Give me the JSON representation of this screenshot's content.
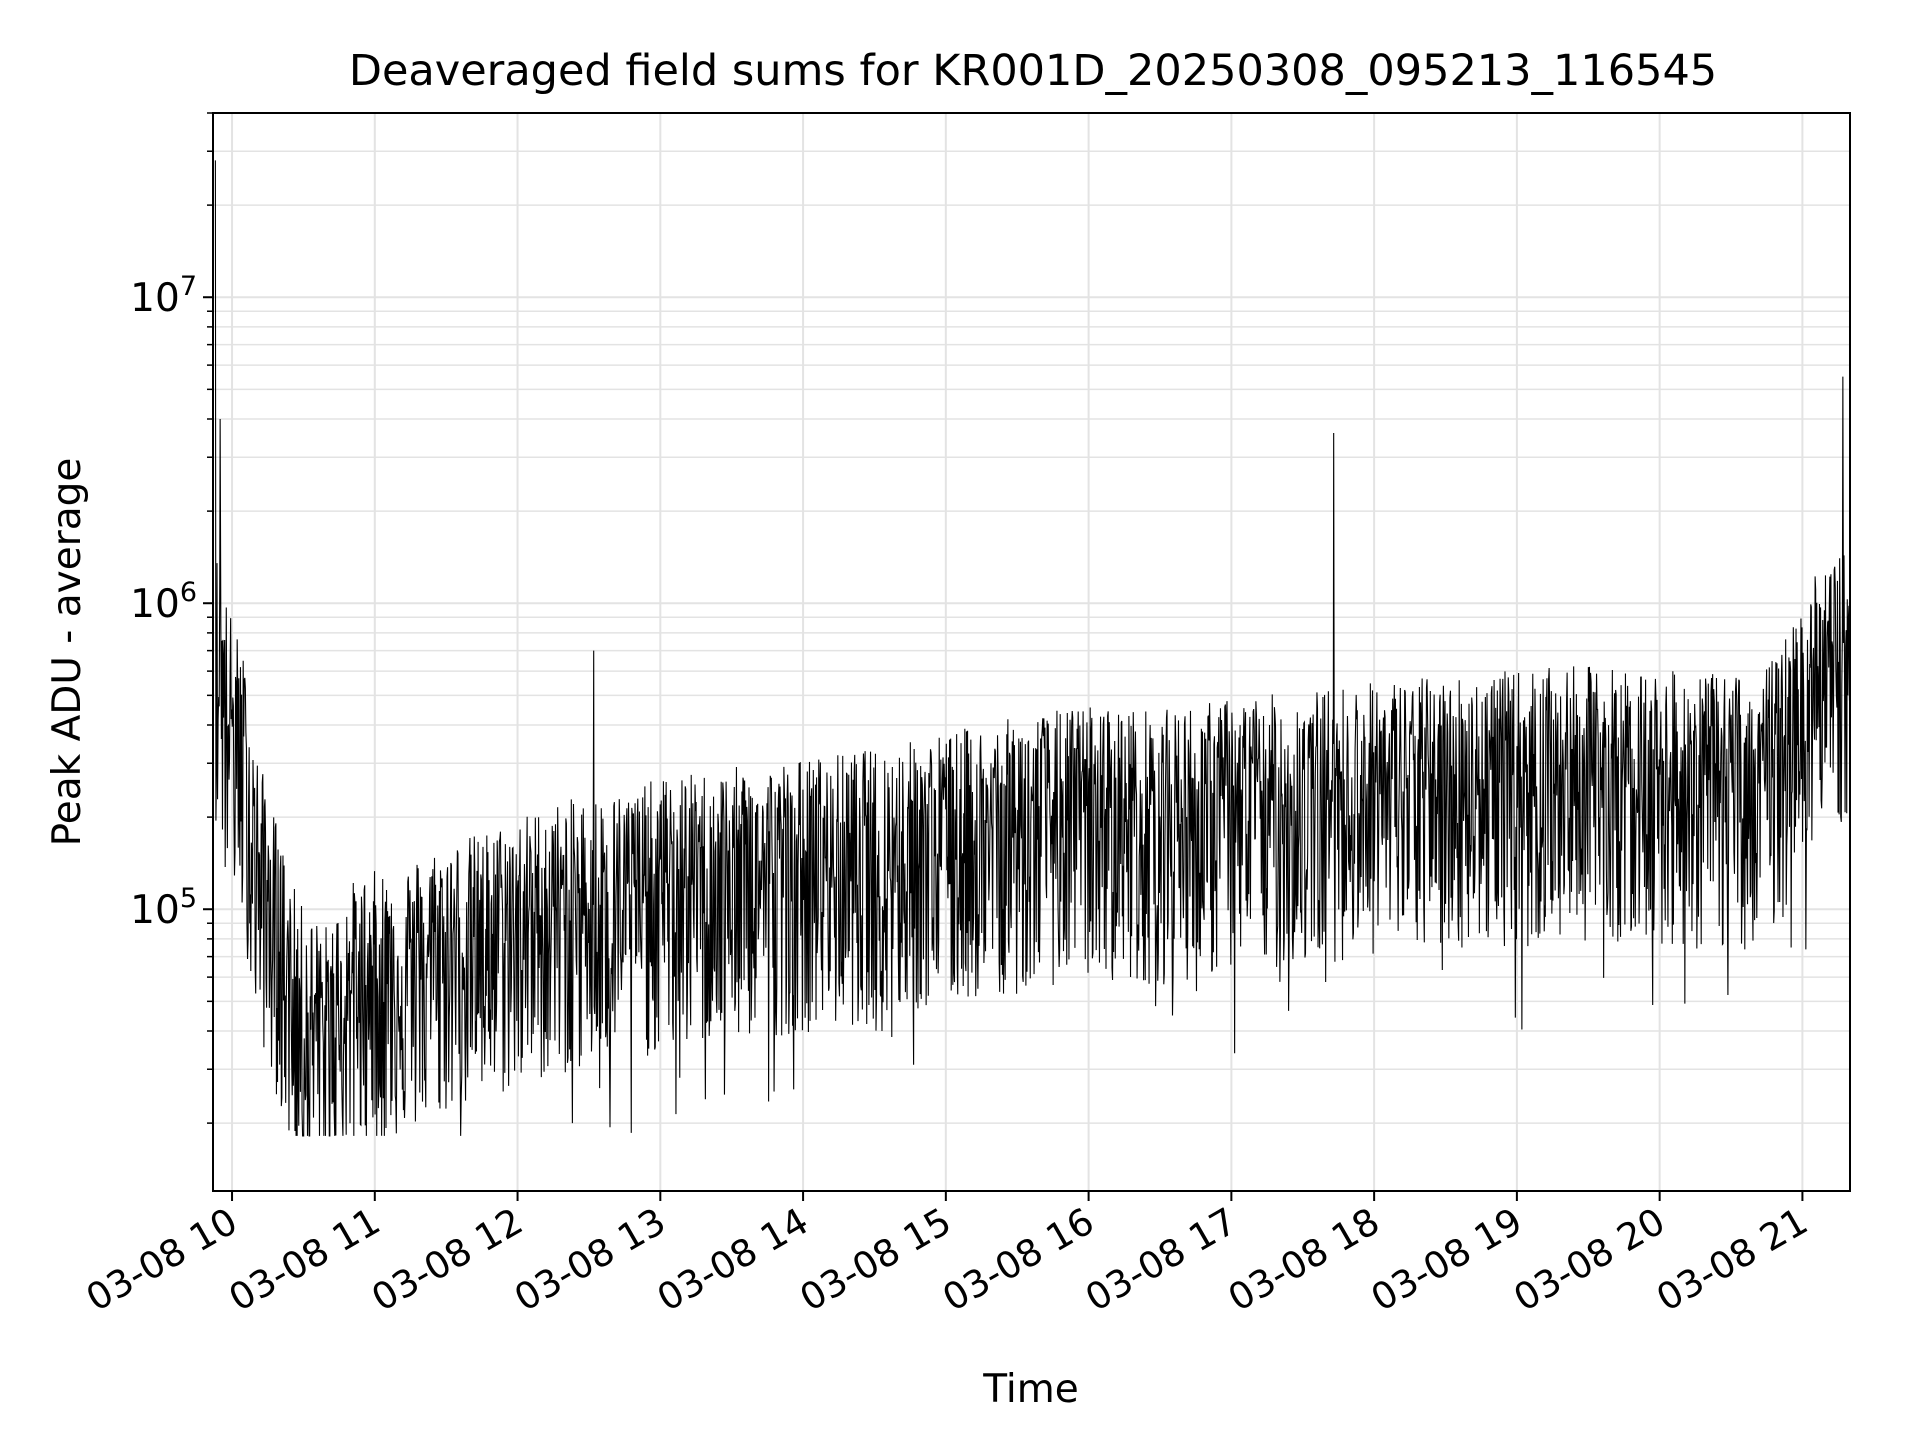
{
  "chart_data": {
    "type": "line",
    "title": "Deaveraged field sums for KR001D_20250308_095213_116545",
    "xlabel": "Time",
    "ylabel": "Peak ADU - average",
    "yscale": "log",
    "ylim": [
      12000,
      40000000
    ],
    "xlim": [
      "2025-03-08 09:52",
      "2025-03-08 21:20"
    ],
    "grid": true,
    "line_color": "#000000",
    "grid_color": "#e3e3e3",
    "x_ticks": [
      {
        "value": "2025-03-08 10:00",
        "label": "03-08 10"
      },
      {
        "value": "2025-03-08 11:00",
        "label": "03-08 11"
      },
      {
        "value": "2025-03-08 12:00",
        "label": "03-08 12"
      },
      {
        "value": "2025-03-08 13:00",
        "label": "03-08 13"
      },
      {
        "value": "2025-03-08 14:00",
        "label": "03-08 14"
      },
      {
        "value": "2025-03-08 15:00",
        "label": "03-08 15"
      },
      {
        "value": "2025-03-08 16:00",
        "label": "03-08 16"
      },
      {
        "value": "2025-03-08 17:00",
        "label": "03-08 17"
      },
      {
        "value": "2025-03-08 18:00",
        "label": "03-08 18"
      },
      {
        "value": "2025-03-08 19:00",
        "label": "03-08 19"
      },
      {
        "value": "2025-03-08 20:00",
        "label": "03-08 20"
      },
      {
        "value": "2025-03-08 21:00",
        "label": "03-08 21"
      }
    ],
    "y_ticks": [
      {
        "value": 100000,
        "base": "10",
        "exp": "5"
      },
      {
        "value": 1000000,
        "base": "10",
        "exp": "6"
      },
      {
        "value": 10000000,
        "base": "10",
        "exp": "7"
      }
    ],
    "series": [
      {
        "x": [
          "2025-03-08 09:53",
          "2025-03-08 09:55",
          "2025-03-08 09:57",
          "2025-03-08 10:00",
          "2025-03-08 10:05",
          "2025-03-08 10:10",
          "2025-03-08 10:15",
          "2025-03-08 10:20",
          "2025-03-08 10:25",
          "2025-03-08 10:30",
          "2025-03-08 10:40",
          "2025-03-08 10:50",
          "2025-03-08 11:00",
          "2025-03-08 11:15",
          "2025-03-08 11:30",
          "2025-03-08 11:45",
          "2025-03-08 12:00",
          "2025-03-08 12:15",
          "2025-03-08 12:30",
          "2025-03-08 12:45",
          "2025-03-08 13:00",
          "2025-03-08 13:30",
          "2025-03-08 14:00",
          "2025-03-08 14:30",
          "2025-03-08 15:00",
          "2025-03-08 15:30",
          "2025-03-08 16:00",
          "2025-03-08 16:30",
          "2025-03-08 17:00",
          "2025-03-08 17:30",
          "2025-03-08 18:00",
          "2025-03-08 18:30",
          "2025-03-08 19:00",
          "2025-03-08 19:30",
          "2025-03-08 20:00",
          "2025-03-08 20:30",
          "2025-03-08 20:50",
          "2025-03-08 21:00",
          "2025-03-08 21:10",
          "2025-03-08 21:20"
        ],
        "y": [
          700000,
          600000,
          500000,
          400000,
          300000,
          150000,
          110000,
          80000,
          55000,
          45000,
          40000,
          55000,
          60000,
          65000,
          75000,
          80000,
          90000,
          100000,
          105000,
          110000,
          120000,
          130000,
          140000,
          150000,
          170000,
          190000,
          210000,
          200000,
          220000,
          230000,
          250000,
          260000,
          270000,
          280000,
          270000,
          260000,
          300000,
          500000,
          600000,
          700000
        ]
      }
    ],
    "peaks": [
      {
        "x": "2025-03-08 09:53",
        "y": 28000000
      },
      {
        "x": "2025-03-08 09:55",
        "y": 4000000
      },
      {
        "x": "2025-03-08 12:32",
        "y": 700000
      },
      {
        "x": "2025-03-08 17:43",
        "y": 3600000
      },
      {
        "x": "2025-03-08 21:17",
        "y": 5500000
      }
    ]
  }
}
